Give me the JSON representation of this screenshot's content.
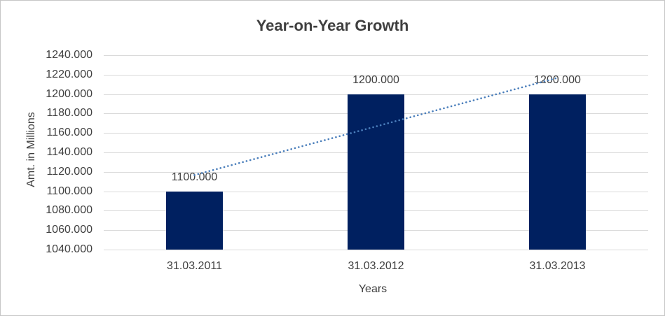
{
  "frame": {
    "background": "#FFFFFF",
    "border_color": "#C6C6C6"
  },
  "chart_data": {
    "type": "bar",
    "title": "Year-on-Year Growth",
    "xlabel": "Years",
    "ylabel": "Amt. in Millions",
    "categories": [
      "31.03.2011",
      "31.03.2012",
      "31.03.2013"
    ],
    "values": [
      1100,
      1200,
      1200
    ],
    "data_labels": [
      "1100.000",
      "1200.000",
      "1200.000"
    ],
    "ylim": [
      1040,
      1240
    ],
    "ytick_step": 20,
    "ytick_labels": [
      "1240.000",
      "1220.000",
      "1200.000",
      "1180.000",
      "1160.000",
      "1140.000",
      "1120.000",
      "1100.000",
      "1080.000",
      "1060.000",
      "1040.000"
    ],
    "grid": true,
    "legend": "none",
    "bar_color": "#002060",
    "gridline_color": "#D9D9D9",
    "text_color": "#404040",
    "title_color": "#3F3F3F",
    "trendline": {
      "type": "linear",
      "style": "dotted",
      "color": "#4A7EBB",
      "start_value": 1116.7,
      "end_value": 1216.7
    }
  }
}
